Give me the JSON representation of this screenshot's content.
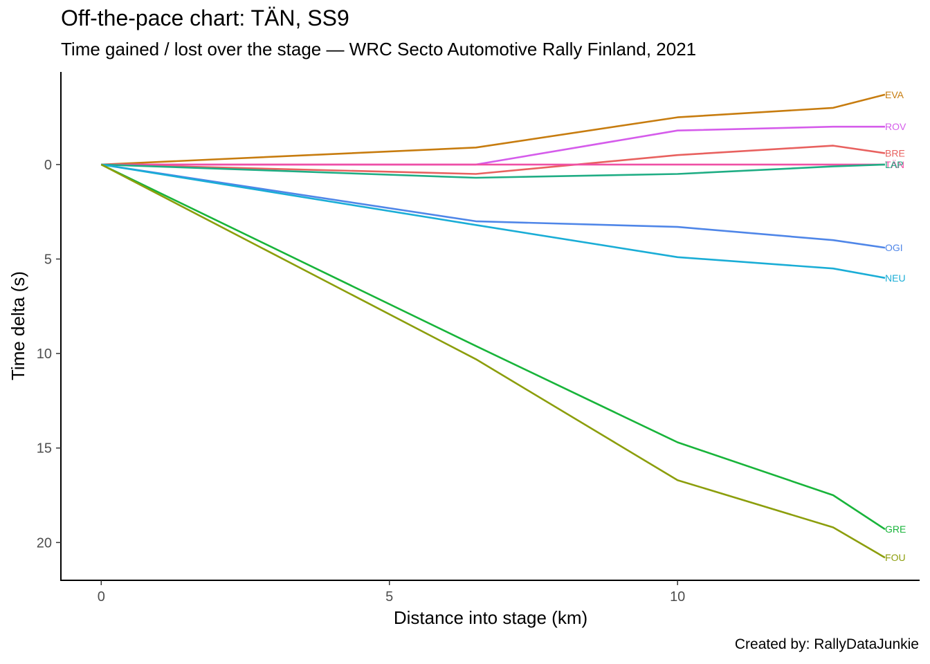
{
  "chart_data": {
    "type": "line",
    "title": "Off-the-pace chart: TÄN, SS9",
    "subtitle": "Time gained / lost over the stage — WRC Secto Automotive Rally Finland, 2021",
    "caption": "Created by: RallyDataJunkie",
    "xlabel": "Distance into stage (km)",
    "ylabel": "Time delta (s)",
    "xlim": [
      -0.7,
      14.2
    ],
    "ylim": [
      22,
      -4.9
    ],
    "y_reversed": true,
    "x_ticks": [
      0,
      5,
      10
    ],
    "y_ticks": [
      0,
      5,
      10,
      15,
      20
    ],
    "grid": false,
    "legend": "direct labels at line ends",
    "x": [
      0,
      6.5,
      10,
      12.7,
      13.6
    ],
    "series": [
      {
        "name": "EVA",
        "color": "#C77C0F",
        "values": [
          0,
          -0.9,
          -2.5,
          -3.0,
          -3.7
        ]
      },
      {
        "name": "ROV",
        "color": "#D55CEB",
        "values": [
          0,
          0,
          -1.8,
          -2.0,
          -2.0
        ]
      },
      {
        "name": "BRE",
        "color": "#E8615F",
        "values": [
          0,
          0.5,
          -0.5,
          -1.0,
          -0.6
        ]
      },
      {
        "name": "TÄN",
        "color": "#EF4FA4",
        "values": [
          0,
          0,
          0,
          0,
          0
        ]
      },
      {
        "name": "LAP",
        "color": "#1FAD84",
        "values": [
          0,
          0.7,
          0.5,
          0.1,
          0
        ]
      },
      {
        "name": "OGI",
        "color": "#4F86E8",
        "values": [
          0,
          3.0,
          3.3,
          4.0,
          4.4
        ]
      },
      {
        "name": "NEU",
        "color": "#1AADD6",
        "values": [
          0,
          3.2,
          4.9,
          5.5,
          6.0
        ]
      },
      {
        "name": "GRE",
        "color": "#18B43A",
        "values": [
          0,
          9.6,
          14.7,
          17.5,
          19.3
        ]
      },
      {
        "name": "FOU",
        "color": "#8C9E0C",
        "values": [
          0,
          10.3,
          16.7,
          19.2,
          20.8
        ]
      }
    ]
  }
}
